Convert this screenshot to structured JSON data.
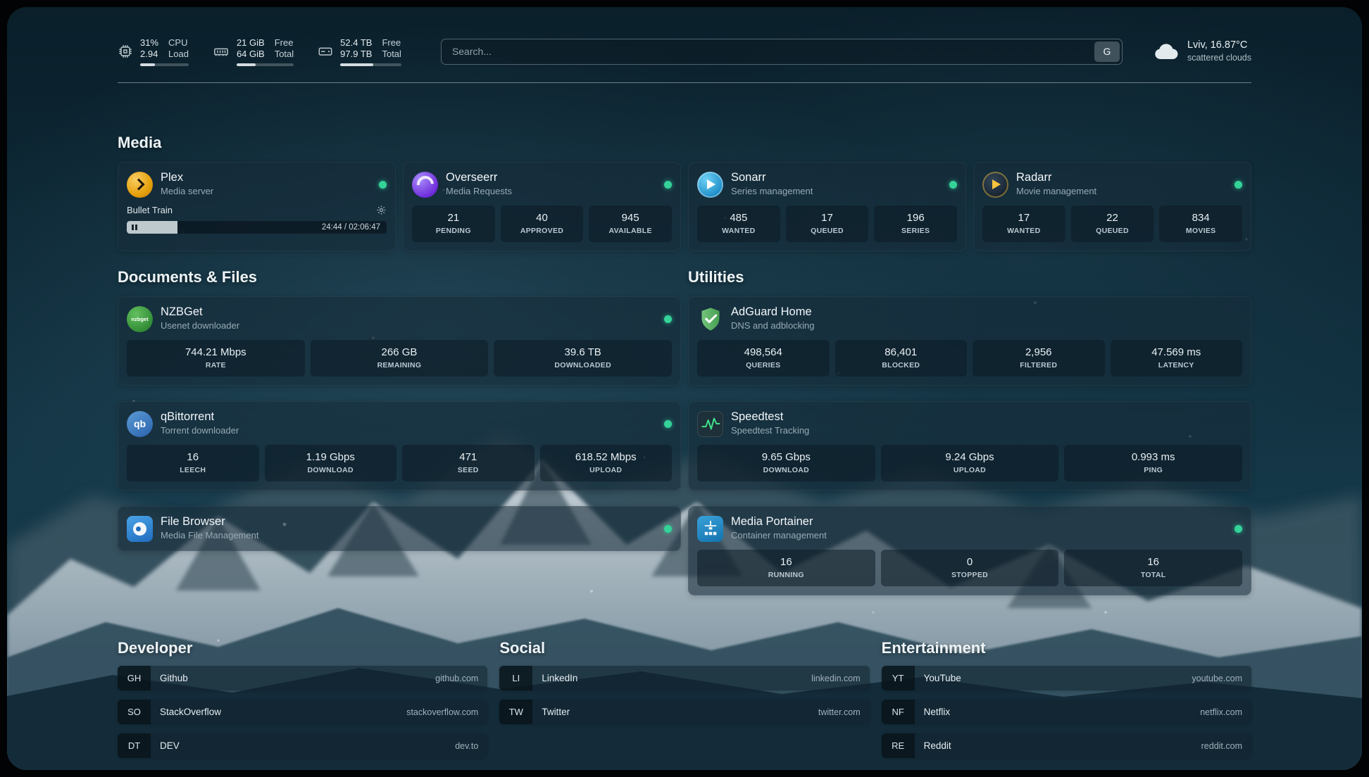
{
  "topbar": {
    "cpu": {
      "col1_top": "31%",
      "col1_bottom": "2.94",
      "col2_top": "CPU",
      "col2_bottom": "Load",
      "meter_percent": 31
    },
    "memory": {
      "col1_top": "21 GiB",
      "col1_bottom": "64 GiB",
      "col2_top": "Free",
      "col2_bottom": "Total",
      "meter_percent": 33
    },
    "disk": {
      "col1_top": "52.4 TB",
      "col1_bottom": "97.9 TB",
      "col2_top": "Free",
      "col2_bottom": "Total",
      "meter_percent": 54
    },
    "search": {
      "placeholder": "Search...",
      "button_label": "G"
    },
    "weather": {
      "location": "Lviv, 16.87°C",
      "condition": "scattered clouds"
    }
  },
  "sections": {
    "media": {
      "title": "Media",
      "plex": {
        "name": "Plex",
        "subtitle": "Media server",
        "now_playing": "Bullet Train",
        "time": "24:44 / 02:06:47",
        "progress_percent": 19.5
      },
      "overseerr": {
        "name": "Overseerr",
        "subtitle": "Media Requests",
        "stats": [
          {
            "value": "21",
            "label": "PENDING"
          },
          {
            "value": "40",
            "label": "APPROVED"
          },
          {
            "value": "945",
            "label": "AVAILABLE"
          }
        ]
      },
      "sonarr": {
        "name": "Sonarr",
        "subtitle": "Series management",
        "stats": [
          {
            "value": "485",
            "label": "WANTED"
          },
          {
            "value": "17",
            "label": "QUEUED"
          },
          {
            "value": "196",
            "label": "SERIES"
          }
        ]
      },
      "radarr": {
        "name": "Radarr",
        "subtitle": "Movie management",
        "stats": [
          {
            "value": "17",
            "label": "WANTED"
          },
          {
            "value": "22",
            "label": "QUEUED"
          },
          {
            "value": "834",
            "label": "MOVIES"
          }
        ]
      }
    },
    "documents": {
      "title": "Documents & Files",
      "nzbget": {
        "name": "NZBGet",
        "subtitle": "Usenet downloader",
        "icon_text": "nzbget",
        "stats": [
          {
            "value": "744.21 Mbps",
            "label": "RATE"
          },
          {
            "value": "266 GB",
            "label": "REMAINING"
          },
          {
            "value": "39.6 TB",
            "label": "DOWNLOADED"
          }
        ]
      },
      "qbittorrent": {
        "name": "qBittorrent",
        "subtitle": "Torrent downloader",
        "icon_text": "qb",
        "stats": [
          {
            "value": "16",
            "label": "LEECH"
          },
          {
            "value": "1.19 Gbps",
            "label": "DOWNLOAD"
          },
          {
            "value": "471",
            "label": "SEED"
          },
          {
            "value": "618.52 Mbps",
            "label": "UPLOAD"
          }
        ]
      },
      "filebrowser": {
        "name": "File Browser",
        "subtitle": "Media File Management"
      }
    },
    "utilities": {
      "title": "Utilities",
      "adguard": {
        "name": "AdGuard Home",
        "subtitle": "DNS and adblocking",
        "stats": [
          {
            "value": "498,564",
            "label": "QUERIES"
          },
          {
            "value": "86,401",
            "label": "BLOCKED"
          },
          {
            "value": "2,956",
            "label": "FILTERED"
          },
          {
            "value": "47.569 ms",
            "label": "LATENCY"
          }
        ]
      },
      "speedtest": {
        "name": "Speedtest",
        "subtitle": "Speedtest Tracking",
        "stats": [
          {
            "value": "9.65 Gbps",
            "label": "DOWNLOAD"
          },
          {
            "value": "9.24 Gbps",
            "label": "UPLOAD"
          },
          {
            "value": "0.993 ms",
            "label": "PING"
          }
        ]
      },
      "portainer": {
        "name": "Media Portainer",
        "subtitle": "Container management",
        "stats": [
          {
            "value": "16",
            "label": "RUNNING"
          },
          {
            "value": "0",
            "label": "STOPPED"
          },
          {
            "value": "16",
            "label": "TOTAL"
          }
        ]
      }
    }
  },
  "bookmarks": {
    "developer": {
      "title": "Developer",
      "items": [
        {
          "abbr": "GH",
          "name": "Github",
          "url": "github.com"
        },
        {
          "abbr": "SO",
          "name": "StackOverflow",
          "url": "stackoverflow.com"
        },
        {
          "abbr": "DT",
          "name": "DEV",
          "url": "dev.to"
        }
      ]
    },
    "social": {
      "title": "Social",
      "items": [
        {
          "abbr": "LI",
          "name": "LinkedIn",
          "url": "linkedin.com"
        },
        {
          "abbr": "TW",
          "name": "Twitter",
          "url": "twitter.com"
        }
      ]
    },
    "entertainment": {
      "title": "Entertainment",
      "items": [
        {
          "abbr": "YT",
          "name": "YouTube",
          "url": "youtube.com"
        },
        {
          "abbr": "NF",
          "name": "Netflix",
          "url": "netflix.com"
        },
        {
          "abbr": "RE",
          "name": "Reddit",
          "url": "reddit.com"
        }
      ]
    }
  },
  "colors": {
    "status_online": "#34d399",
    "plex_amber": "#e5a00d",
    "background_teal": "#12333f",
    "card_bg": "rgba(22,43,56,0.58)"
  }
}
